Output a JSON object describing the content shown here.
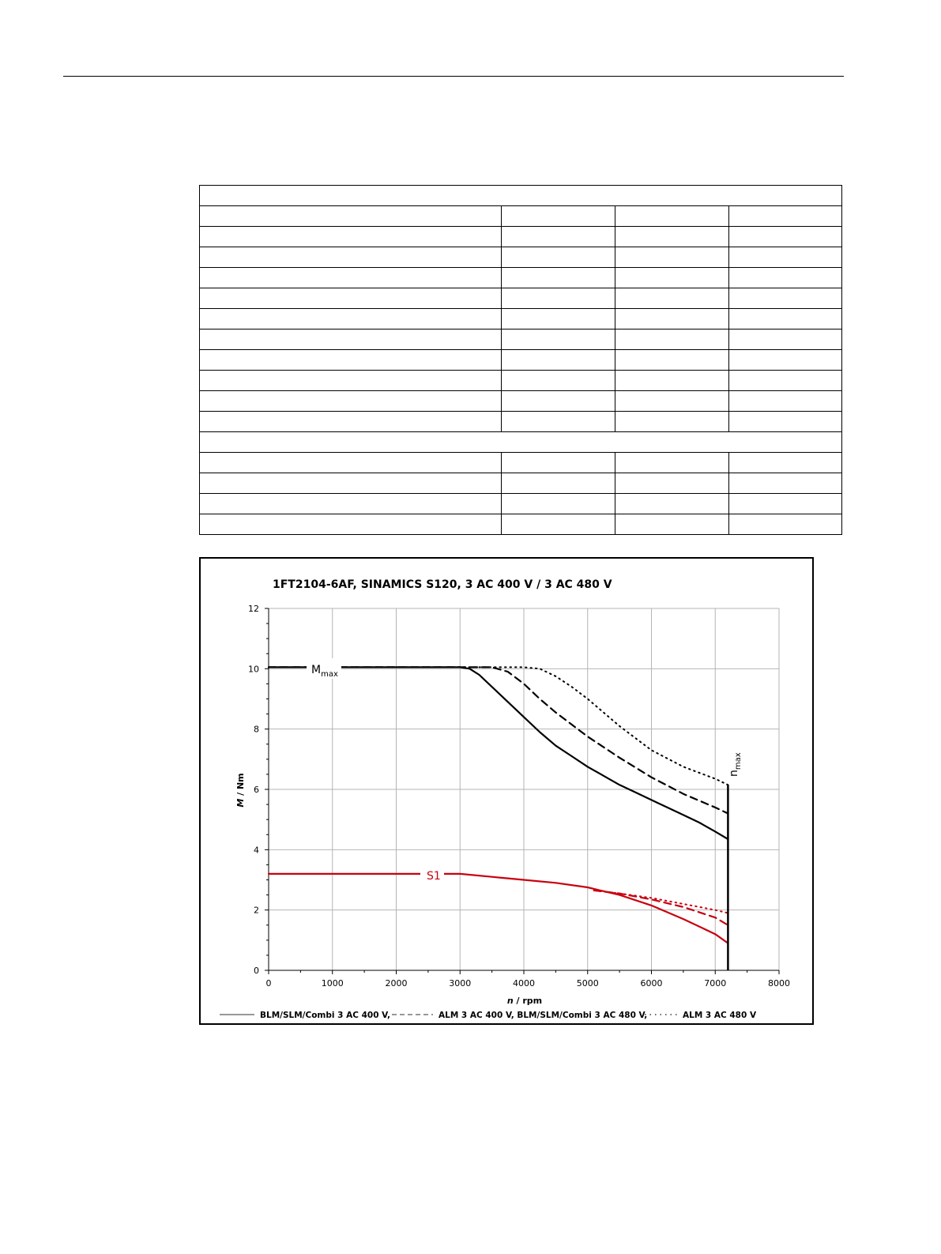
{
  "colors": {
    "thermal_limit": "#c8000f",
    "max_torque": "#000000",
    "grid": "#b4b4b4"
  },
  "table": {
    "rows": [
      {
        "kind": "header",
        "cells": [
          ""
        ]
      },
      {
        "kind": "data",
        "cells": [
          "",
          "",
          "",
          ""
        ]
      },
      {
        "kind": "data",
        "cells": [
          "",
          "",
          "",
          ""
        ]
      },
      {
        "kind": "data",
        "cells": [
          "",
          "",
          "",
          ""
        ]
      },
      {
        "kind": "data",
        "cells": [
          "",
          "",
          "",
          ""
        ]
      },
      {
        "kind": "data",
        "cells": [
          "",
          "",
          "",
          ""
        ]
      },
      {
        "kind": "data",
        "cells": [
          "",
          "",
          "",
          ""
        ]
      },
      {
        "kind": "data",
        "cells": [
          "",
          "",
          "",
          ""
        ]
      },
      {
        "kind": "data",
        "cells": [
          "",
          "",
          "",
          ""
        ]
      },
      {
        "kind": "data",
        "cells": [
          "",
          "",
          "",
          ""
        ]
      },
      {
        "kind": "data",
        "cells": [
          "",
          "",
          "",
          ""
        ]
      },
      {
        "kind": "data",
        "cells": [
          "",
          "",
          "",
          ""
        ]
      },
      {
        "kind": "header",
        "cells": [
          ""
        ]
      },
      {
        "kind": "data",
        "cells": [
          "",
          "",
          "",
          ""
        ]
      },
      {
        "kind": "data",
        "cells": [
          "",
          "",
          "",
          ""
        ]
      },
      {
        "kind": "data",
        "cells": [
          "",
          "",
          "",
          ""
        ]
      },
      {
        "kind": "data",
        "cells": [
          "",
          "",
          "",
          ""
        ]
      }
    ]
  },
  "chart_data": {
    "type": "line",
    "title": "1FT2104-6AF,  SINAMICS S120,  3 AC 400 V / 3 AC 480 V",
    "xlabel_italic": "n",
    "xlabel_rest": " / rpm",
    "ylabel_italic": "M",
    "ylabel_rest": " / Nm",
    "xlim": [
      0,
      8000
    ],
    "ylim": [
      0,
      12
    ],
    "xticks": [
      0,
      1000,
      2000,
      3000,
      4000,
      5000,
      6000,
      7000,
      8000
    ],
    "yticks": [
      0,
      2,
      4,
      6,
      8,
      10,
      12
    ],
    "grid": true,
    "legend_placement": "bottom",
    "legend": [
      {
        "style": "solid",
        "label": "BLM/SLM/Combi 3 AC 400 V,"
      },
      {
        "style": "dashed",
        "label": "ALM 3 AC 400 V, BLM/SLM/Combi 3 AC 480 V,"
      },
      {
        "style": "dotted",
        "label": "ALM 3 AC 480 V"
      }
    ],
    "annotations": {
      "mmax_main": "M",
      "mmax_sub": "max",
      "s1": "S1",
      "nmax_main": "n",
      "nmax_sub": "max",
      "nmax_x": 7200
    },
    "series": [
      {
        "group": "max",
        "style": "solid",
        "x": [
          0,
          3000,
          3150,
          3300,
          3500,
          3750,
          4000,
          4250,
          4500,
          4750,
          5000,
          5250,
          5500,
          5750,
          6000,
          6250,
          6500,
          6750,
          7000,
          7200
        ],
        "y": [
          10.05,
          10.05,
          10.0,
          9.8,
          9.4,
          8.9,
          8.4,
          7.9,
          7.45,
          7.1,
          6.75,
          6.45,
          6.15,
          5.9,
          5.65,
          5.4,
          5.15,
          4.9,
          4.6,
          4.35
        ]
      },
      {
        "group": "max",
        "style": "dashed",
        "x": [
          0,
          3000,
          3500,
          3750,
          4000,
          4250,
          4500,
          5000,
          5500,
          6000,
          6500,
          7000,
          7200
        ],
        "y": [
          10.05,
          10.05,
          10.05,
          9.9,
          9.5,
          9.0,
          8.55,
          7.75,
          7.05,
          6.4,
          5.85,
          5.4,
          5.2
        ]
      },
      {
        "group": "max",
        "style": "dotted",
        "x": [
          0,
          3000,
          3500,
          4000,
          4250,
          4500,
          4750,
          5000,
          5500,
          6000,
          6500,
          7000,
          7200
        ],
        "y": [
          10.05,
          10.05,
          10.05,
          10.05,
          10.0,
          9.75,
          9.4,
          9.0,
          8.1,
          7.3,
          6.75,
          6.35,
          6.15
        ]
      },
      {
        "group": "s1",
        "style": "solid",
        "x": [
          0,
          3000,
          3500,
          4000,
          4500,
          5000,
          5200,
          5500,
          6000,
          6500,
          7000,
          7200
        ],
        "y": [
          3.2,
          3.2,
          3.1,
          3.0,
          2.9,
          2.75,
          2.65,
          2.5,
          2.15,
          1.7,
          1.2,
          0.9
        ]
      },
      {
        "group": "s1",
        "style": "dashed",
        "x": [
          5100,
          5500,
          6000,
          6500,
          7000,
          7200
        ],
        "y": [
          2.65,
          2.55,
          2.35,
          2.1,
          1.75,
          1.5
        ]
      },
      {
        "group": "s1",
        "style": "dotted",
        "x": [
          5100,
          5500,
          6000,
          6500,
          7000,
          7200
        ],
        "y": [
          2.65,
          2.55,
          2.4,
          2.2,
          2.0,
          1.9
        ]
      }
    ]
  }
}
